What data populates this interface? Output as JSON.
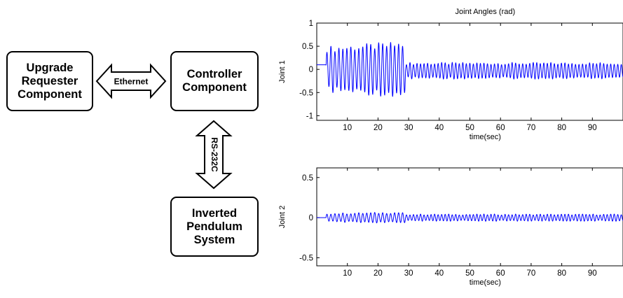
{
  "diagram": {
    "blocks": {
      "upgrade": "Upgrade\nRequester\nComponent",
      "controller": "Controller\nComponent",
      "pendulum": "Inverted\nPendulum\nSystem"
    },
    "links": {
      "ethernet": "Ethernet",
      "serial": "RS-232C"
    }
  },
  "chart_data": [
    {
      "type": "line",
      "title": "Joint Angles (rad)",
      "xlabel": "time(sec)",
      "ylabel": "Joint 1",
      "xlim": [
        0,
        100
      ],
      "ylim": [
        -1.1,
        1.0
      ],
      "xticks": [
        10,
        20,
        30,
        40,
        50,
        60,
        70,
        80,
        90
      ],
      "yticks": [
        -1,
        -0.5,
        0,
        0.5,
        1
      ],
      "ytick_labels": [
        "-1",
        "-0.5",
        "0",
        "0.5",
        "1"
      ],
      "color": "#0000ff",
      "series": [
        {
          "segments": [
            {
              "t_start": 0,
              "t_end": 3,
              "form": "constant",
              "level": 0.1
            },
            {
              "t_start": 3,
              "t_end": 29,
              "form": "oscillation",
              "amplitude_start": 0.45,
              "amplitude_end": 0.55,
              "offset": 0.0,
              "period": 1.3
            },
            {
              "t_start": 29,
              "t_end": 100,
              "form": "oscillation",
              "amplitude_start": 0.16,
              "amplitude_end": 0.16,
              "offset": -0.03,
              "period": 1.15
            }
          ]
        }
      ]
    },
    {
      "type": "line",
      "title": "",
      "xlabel": "time(sec)",
      "ylabel": "Joint 2",
      "xlim": [
        0,
        100
      ],
      "ylim": [
        -0.6,
        0.62
      ],
      "xticks": [
        10,
        20,
        30,
        40,
        50,
        60,
        70,
        80,
        90
      ],
      "yticks": [
        -0.5,
        0,
        0.5
      ],
      "ytick_labels": [
        "-0.5",
        "0",
        "0.5"
      ],
      "color": "#0000ff",
      "series": [
        {
          "segments": [
            {
              "t_start": 0,
              "t_end": 3,
              "form": "constant",
              "level": 0.0
            },
            {
              "t_start": 3,
              "t_end": 29,
              "form": "oscillation",
              "amplitude_start": 0.05,
              "amplitude_end": 0.065,
              "offset": 0.0,
              "period": 1.3
            },
            {
              "t_start": 29,
              "t_end": 100,
              "form": "oscillation",
              "amplitude_start": 0.04,
              "amplitude_end": 0.04,
              "offset": 0.0,
              "period": 1.15
            }
          ]
        }
      ]
    }
  ]
}
